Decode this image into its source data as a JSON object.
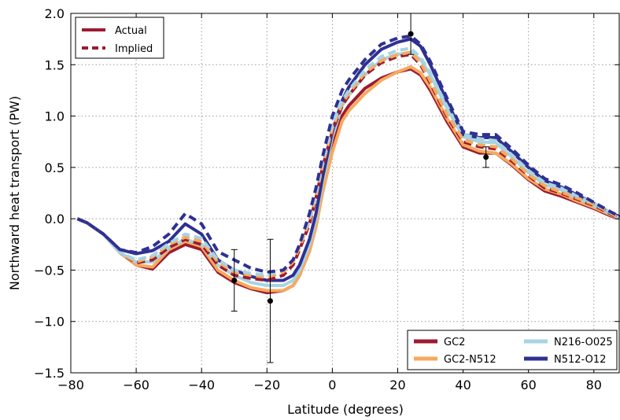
{
  "chart_data": {
    "type": "line",
    "xlabel": "Latitude (degrees)",
    "ylabel": "Northward heat transport (PW)",
    "xlim": [
      -80,
      88
    ],
    "ylim": [
      -1.5,
      2.0
    ],
    "xticks": [
      -80,
      -60,
      -40,
      -20,
      0,
      20,
      40,
      60,
      80
    ],
    "xtick_labels": [
      "−80",
      "−60",
      "−40",
      "−20",
      "0",
      "20",
      "40",
      "60",
      "80"
    ],
    "yticks": [
      -1.5,
      -1.0,
      -0.5,
      0.0,
      0.5,
      1.0,
      1.5,
      2.0
    ],
    "ytick_labels": [
      "−1.5",
      "−1.0",
      "−0.5",
      "0.0",
      "0.5",
      "1.0",
      "1.5",
      "2.0"
    ],
    "grid": true,
    "legend_style": {
      "placement": "top-left",
      "entries": [
        {
          "label": "Actual",
          "style": "solid",
          "color": "#9b1b30"
        },
        {
          "label": "Implied",
          "style": "dashed",
          "color": "#9b1b30"
        }
      ]
    },
    "legend_models": {
      "placement": "bottom-right",
      "entries": [
        {
          "label": "GC2",
          "color": "#9b1b30"
        },
        {
          "label": "N216-O025",
          "color": "#a6d4e3"
        },
        {
          "label": "GC2-N512",
          "color": "#f7a95e"
        },
        {
          "label": "N512-O12",
          "color": "#2e3192"
        }
      ]
    },
    "series": [
      {
        "name": "GC2",
        "style": "solid",
        "color": "#9b1b30",
        "x": [
          -78,
          -75,
          -70,
          -65,
          -60,
          -55,
          -50,
          -45,
          -40,
          -35,
          -30,
          -25,
          -20,
          -15,
          -12,
          -10,
          -7,
          -5,
          -3,
          0,
          3,
          5,
          10,
          15,
          20,
          24,
          27,
          30,
          35,
          40,
          45,
          50,
          55,
          60,
          65,
          70,
          75,
          80,
          85,
          88
        ],
        "y": [
          0.0,
          -0.04,
          -0.15,
          -0.33,
          -0.45,
          -0.49,
          -0.33,
          -0.25,
          -0.3,
          -0.52,
          -0.62,
          -0.68,
          -0.72,
          -0.7,
          -0.65,
          -0.55,
          -0.3,
          -0.05,
          0.3,
          0.7,
          1.0,
          1.1,
          1.27,
          1.37,
          1.43,
          1.46,
          1.4,
          1.25,
          0.95,
          0.7,
          0.64,
          0.64,
          0.52,
          0.38,
          0.27,
          0.22,
          0.16,
          0.1,
          0.03,
          0.0
        ]
      },
      {
        "name": "GC2",
        "style": "dashed",
        "color": "#9b1b30",
        "x": [
          -78,
          -75,
          -70,
          -65,
          -60,
          -55,
          -50,
          -45,
          -40,
          -35,
          -30,
          -25,
          -20,
          -15,
          -12,
          -10,
          -7,
          -5,
          -3,
          0,
          3,
          5,
          10,
          15,
          20,
          24,
          27,
          30,
          35,
          40,
          45,
          50,
          55,
          60,
          65,
          70,
          75,
          80,
          85,
          88
        ],
        "y": [
          0.0,
          -0.04,
          -0.15,
          -0.33,
          -0.43,
          -0.4,
          -0.28,
          -0.2,
          -0.25,
          -0.45,
          -0.55,
          -0.58,
          -0.6,
          -0.55,
          -0.45,
          -0.3,
          -0.05,
          0.2,
          0.5,
          0.85,
          1.1,
          1.2,
          1.4,
          1.52,
          1.58,
          1.6,
          1.5,
          1.32,
          1.0,
          0.75,
          0.7,
          0.68,
          0.56,
          0.42,
          0.3,
          0.25,
          0.19,
          0.13,
          0.05,
          0.0
        ]
      },
      {
        "name": "GC2-N512",
        "style": "solid",
        "color": "#f7a95e",
        "x": [
          -78,
          -75,
          -70,
          -65,
          -60,
          -55,
          -50,
          -45,
          -40,
          -35,
          -30,
          -25,
          -20,
          -15,
          -12,
          -10,
          -7,
          -5,
          -3,
          0,
          3,
          5,
          10,
          15,
          20,
          24,
          27,
          30,
          35,
          40,
          45,
          50,
          55,
          60,
          65,
          70,
          75,
          80,
          85,
          88
        ],
        "y": [
          0.0,
          -0.04,
          -0.15,
          -0.33,
          -0.45,
          -0.47,
          -0.3,
          -0.22,
          -0.27,
          -0.5,
          -0.6,
          -0.67,
          -0.7,
          -0.7,
          -0.65,
          -0.55,
          -0.32,
          -0.08,
          0.25,
          0.65,
          0.95,
          1.05,
          1.22,
          1.35,
          1.43,
          1.48,
          1.42,
          1.28,
          0.98,
          0.72,
          0.66,
          0.64,
          0.53,
          0.39,
          0.29,
          0.24,
          0.17,
          0.11,
          0.04,
          0.0
        ]
      },
      {
        "name": "GC2-N512",
        "style": "dashed",
        "color": "#f7a95e",
        "x": [
          -78,
          -75,
          -70,
          -65,
          -60,
          -55,
          -50,
          -45,
          -40,
          -35,
          -30,
          -25,
          -20,
          -15,
          -12,
          -10,
          -7,
          -5,
          -3,
          0,
          3,
          5,
          10,
          15,
          20,
          24,
          27,
          30,
          35,
          40,
          45,
          50,
          55,
          60,
          65,
          70,
          75,
          80,
          85,
          88
        ],
        "y": [
          0.0,
          -0.04,
          -0.15,
          -0.33,
          -0.42,
          -0.37,
          -0.25,
          -0.18,
          -0.22,
          -0.42,
          -0.52,
          -0.55,
          -0.57,
          -0.52,
          -0.42,
          -0.28,
          -0.02,
          0.22,
          0.52,
          0.88,
          1.12,
          1.22,
          1.42,
          1.54,
          1.6,
          1.62,
          1.52,
          1.34,
          1.02,
          0.77,
          0.72,
          0.7,
          0.58,
          0.43,
          0.32,
          0.26,
          0.2,
          0.14,
          0.06,
          0.0
        ]
      },
      {
        "name": "N216-O025",
        "style": "solid",
        "color": "#a6d4e3",
        "x": [
          -78,
          -75,
          -70,
          -65,
          -60,
          -55,
          -50,
          -45,
          -40,
          -35,
          -30,
          -25,
          -20,
          -15,
          -12,
          -10,
          -7,
          -5,
          -3,
          0,
          3,
          5,
          10,
          15,
          20,
          24,
          27,
          30,
          35,
          40,
          45,
          50,
          55,
          60,
          65,
          70,
          75,
          80,
          85,
          88
        ],
        "y": [
          0.0,
          -0.04,
          -0.15,
          -0.33,
          -0.42,
          -0.42,
          -0.28,
          -0.2,
          -0.25,
          -0.45,
          -0.55,
          -0.62,
          -0.65,
          -0.65,
          -0.6,
          -0.5,
          -0.25,
          0.0,
          0.35,
          0.8,
          1.1,
          1.2,
          1.4,
          1.55,
          1.6,
          1.62,
          1.55,
          1.4,
          1.08,
          0.8,
          0.75,
          0.74,
          0.6,
          0.45,
          0.33,
          0.28,
          0.2,
          0.13,
          0.05,
          0.0
        ]
      },
      {
        "name": "N216-O025",
        "style": "dashed",
        "color": "#a6d4e3",
        "x": [
          -78,
          -75,
          -70,
          -65,
          -60,
          -55,
          -50,
          -45,
          -40,
          -35,
          -30,
          -25,
          -20,
          -15,
          -12,
          -10,
          -7,
          -5,
          -3,
          0,
          3,
          5,
          10,
          15,
          20,
          24,
          27,
          30,
          35,
          40,
          45,
          50,
          55,
          60,
          65,
          70,
          75,
          80,
          85,
          88
        ],
        "y": [
          0.0,
          -0.04,
          -0.15,
          -0.33,
          -0.4,
          -0.36,
          -0.24,
          -0.15,
          -0.19,
          -0.4,
          -0.5,
          -0.53,
          -0.55,
          -0.5,
          -0.4,
          -0.25,
          0.0,
          0.25,
          0.55,
          0.92,
          1.15,
          1.25,
          1.45,
          1.58,
          1.64,
          1.66,
          1.57,
          1.42,
          1.1,
          0.82,
          0.78,
          0.76,
          0.62,
          0.47,
          0.35,
          0.3,
          0.22,
          0.15,
          0.06,
          0.0
        ]
      },
      {
        "name": "N512-O12",
        "style": "solid",
        "color": "#2e3192",
        "x": [
          -78,
          -75,
          -70,
          -65,
          -60,
          -55,
          -50,
          -45,
          -40,
          -35,
          -30,
          -25,
          -20,
          -15,
          -12,
          -10,
          -7,
          -5,
          -3,
          0,
          3,
          5,
          10,
          15,
          20,
          24,
          27,
          30,
          35,
          40,
          45,
          50,
          55,
          60,
          65,
          70,
          75,
          80,
          85,
          88
        ],
        "y": [
          0.0,
          -0.04,
          -0.15,
          -0.3,
          -0.34,
          -0.31,
          -0.22,
          -0.05,
          -0.15,
          -0.4,
          -0.5,
          -0.56,
          -0.6,
          -0.6,
          -0.55,
          -0.45,
          -0.2,
          0.05,
          0.4,
          0.85,
          1.15,
          1.28,
          1.5,
          1.65,
          1.72,
          1.75,
          1.68,
          1.5,
          1.15,
          0.82,
          0.79,
          0.79,
          0.65,
          0.5,
          0.37,
          0.31,
          0.23,
          0.15,
          0.06,
          0.02
        ]
      },
      {
        "name": "N512-O12",
        "style": "dashed",
        "color": "#2e3192",
        "x": [
          -78,
          -75,
          -70,
          -65,
          -60,
          -55,
          -50,
          -45,
          -40,
          -35,
          -30,
          -25,
          -20,
          -15,
          -12,
          -10,
          -7,
          -5,
          -3,
          0,
          3,
          5,
          10,
          15,
          20,
          24,
          27,
          30,
          35,
          40,
          45,
          50,
          55,
          60,
          65,
          70,
          75,
          80,
          85,
          88
        ],
        "y": [
          0.0,
          -0.04,
          -0.15,
          -0.3,
          -0.33,
          -0.27,
          -0.15,
          0.05,
          -0.05,
          -0.32,
          -0.4,
          -0.48,
          -0.52,
          -0.5,
          -0.4,
          -0.25,
          0.05,
          0.3,
          0.6,
          1.0,
          1.25,
          1.35,
          1.55,
          1.7,
          1.76,
          1.78,
          1.7,
          1.53,
          1.18,
          0.85,
          0.82,
          0.82,
          0.68,
          0.52,
          0.39,
          0.33,
          0.25,
          0.16,
          0.07,
          0.02
        ]
      }
    ],
    "observations": [
      {
        "x": -30,
        "y": -0.6,
        "ylow": -0.9,
        "yhigh": -0.3
      },
      {
        "x": -19,
        "y": -0.8,
        "ylow": -1.4,
        "yhigh": -0.2
      },
      {
        "x": 24,
        "y": 1.8,
        "ylow": 1.6,
        "yhigh": 2.0
      },
      {
        "x": 47,
        "y": 0.6,
        "ylow": 0.5,
        "yhigh": 0.7
      }
    ]
  }
}
